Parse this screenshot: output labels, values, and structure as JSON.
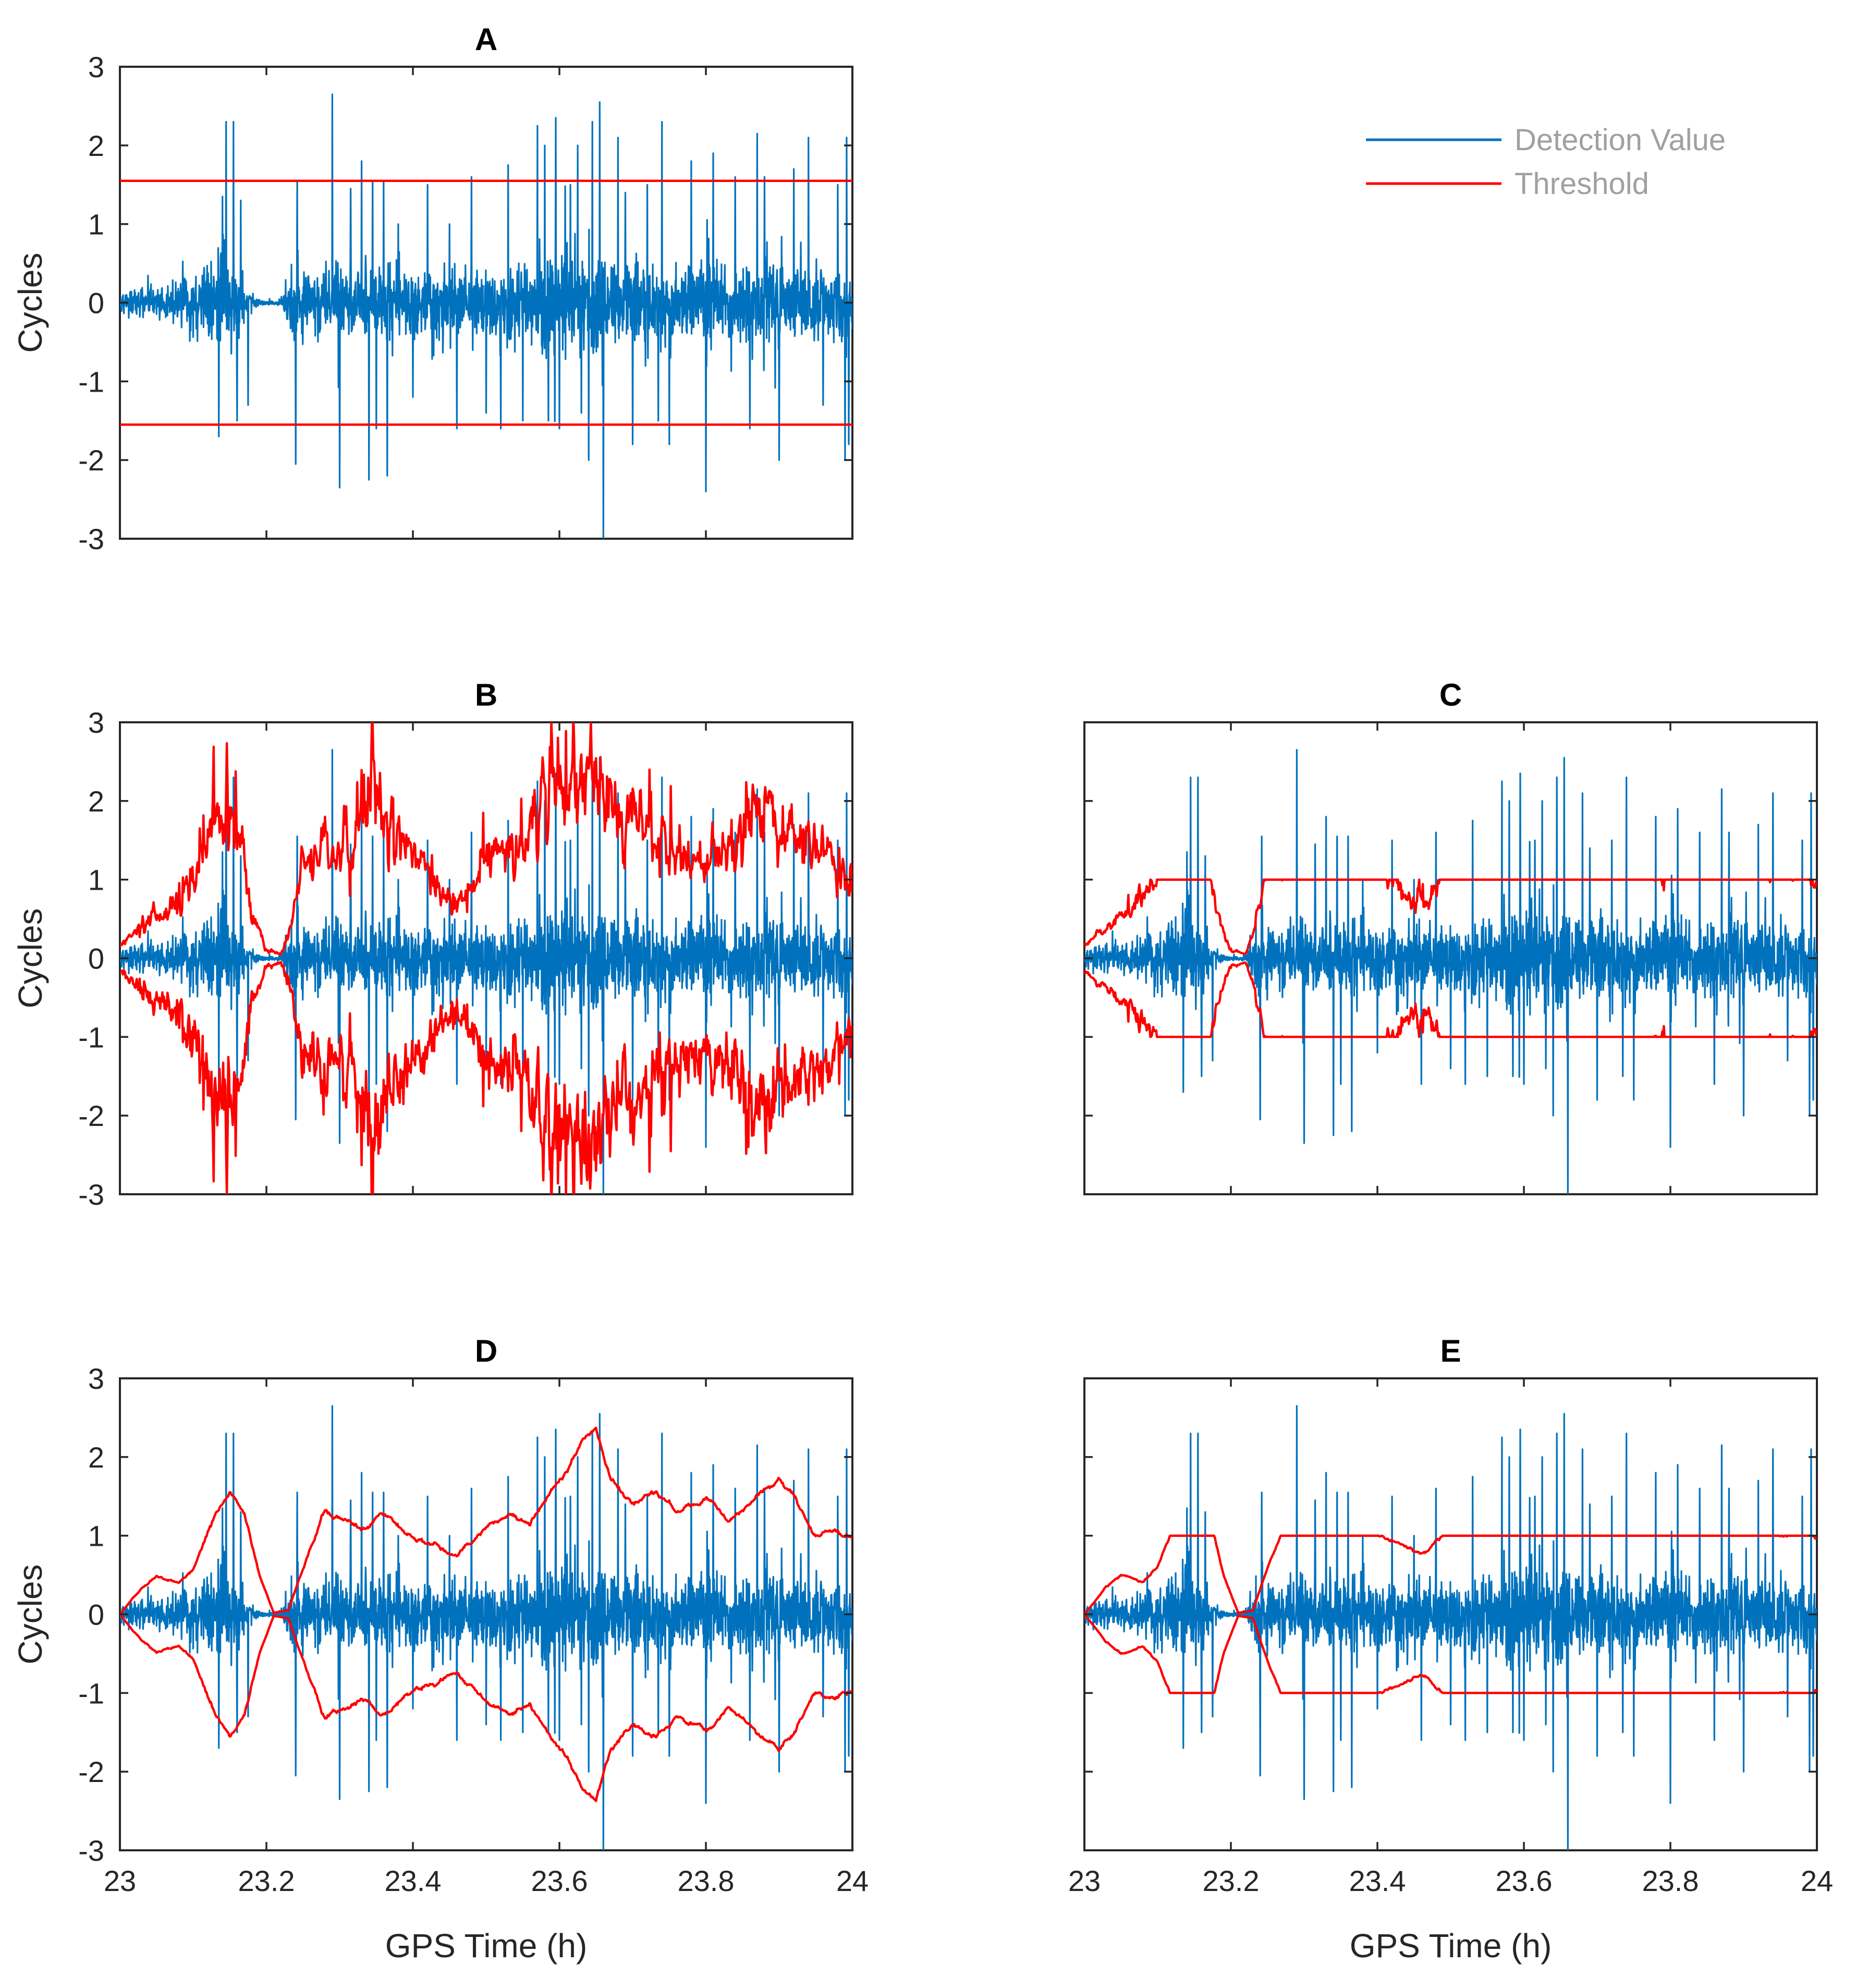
{
  "chart_data": [
    {
      "id": "A",
      "type": "line",
      "title": "A",
      "xlabel": "",
      "ylabel": "Cycles",
      "xlim": [
        23,
        24
      ],
      "ylim": [
        -3,
        3
      ],
      "xticks": [
        23,
        23.2,
        23.4,
        23.6,
        23.8,
        24
      ],
      "yticks": [
        -3,
        -2,
        -1,
        0,
        1,
        2,
        3
      ],
      "show_xtick_labels": false,
      "show_ytick_labels": true,
      "threshold_mode": "constant",
      "threshold_points": [
        [
          23.0,
          1.55
        ],
        [
          24.0,
          1.55
        ]
      ],
      "series": [
        {
          "name": "Detection Value"
        },
        {
          "name": "Threshold"
        }
      ]
    },
    {
      "id": "B",
      "type": "line",
      "title": "B",
      "xlabel": "",
      "ylabel": "Cycles",
      "xlim": [
        23,
        24
      ],
      "ylim": [
        -3,
        3
      ],
      "xticks": [
        23,
        23.2,
        23.4,
        23.6,
        23.8,
        24
      ],
      "yticks": [
        -3,
        -2,
        -1,
        0,
        1,
        2,
        3
      ],
      "show_xtick_labels": false,
      "show_ytick_labels": true,
      "threshold_mode": "noisy",
      "noise_amp": 0.22,
      "threshold_points": [
        [
          23.0,
          0.15
        ],
        [
          23.03,
          0.4
        ],
        [
          23.06,
          0.55
        ],
        [
          23.09,
          0.9
        ],
        [
          23.12,
          1.4
        ],
        [
          23.14,
          2.1
        ],
        [
          23.15,
          2.5
        ],
        [
          23.16,
          1.8
        ],
        [
          23.18,
          0.6
        ],
        [
          23.2,
          0.1
        ],
        [
          23.22,
          0.05
        ],
        [
          23.23,
          0.3
        ],
        [
          23.25,
          1.1
        ],
        [
          23.28,
          1.4
        ],
        [
          23.32,
          1.5
        ],
        [
          23.35,
          2.4
        ],
        [
          23.36,
          1.7
        ],
        [
          23.4,
          1.3
        ],
        [
          23.44,
          0.8
        ],
        [
          23.47,
          0.75
        ],
        [
          23.5,
          1.3
        ],
        [
          23.54,
          1.4
        ],
        [
          23.57,
          1.9
        ],
        [
          23.6,
          2.6
        ],
        [
          23.64,
          2.4
        ],
        [
          23.67,
          1.7
        ],
        [
          23.7,
          1.8
        ],
        [
          23.75,
          1.4
        ],
        [
          23.8,
          1.2
        ],
        [
          23.84,
          1.5
        ],
        [
          23.87,
          2.0
        ],
        [
          23.9,
          1.6
        ],
        [
          23.94,
          1.5
        ],
        [
          23.98,
          1.1
        ],
        [
          24.0,
          1.0
        ]
      ]
    },
    {
      "id": "C",
      "type": "line",
      "title": "C",
      "xlabel": "",
      "ylabel": "",
      "xlim": [
        23,
        24
      ],
      "ylim": [
        -3,
        3
      ],
      "xticks": [
        23,
        23.2,
        23.4,
        23.6,
        23.8,
        24
      ],
      "yticks": [
        -3,
        -2,
        -1,
        0,
        1,
        2,
        3
      ],
      "show_xtick_labels": false,
      "show_ytick_labels": false,
      "threshold_mode": "clipped",
      "clip": 1.0,
      "noise_amp": 0.15,
      "threshold_points": [
        [
          23.0,
          0.15
        ],
        [
          23.03,
          0.4
        ],
        [
          23.06,
          0.55
        ],
        [
          23.09,
          0.9
        ],
        [
          23.12,
          1.4
        ],
        [
          23.14,
          2.1
        ],
        [
          23.15,
          2.5
        ],
        [
          23.16,
          1.8
        ],
        [
          23.18,
          0.6
        ],
        [
          23.2,
          0.1
        ],
        [
          23.22,
          0.05
        ],
        [
          23.23,
          0.3
        ],
        [
          23.25,
          1.1
        ],
        [
          23.28,
          1.4
        ],
        [
          23.32,
          1.5
        ],
        [
          23.35,
          2.4
        ],
        [
          23.36,
          1.7
        ],
        [
          23.4,
          1.3
        ],
        [
          23.44,
          0.8
        ],
        [
          23.47,
          0.75
        ],
        [
          23.5,
          1.3
        ],
        [
          23.54,
          1.4
        ],
        [
          23.57,
          1.9
        ],
        [
          23.6,
          2.6
        ],
        [
          23.64,
          2.4
        ],
        [
          23.67,
          1.7
        ],
        [
          23.7,
          1.8
        ],
        [
          23.75,
          1.4
        ],
        [
          23.8,
          1.2
        ],
        [
          23.84,
          1.5
        ],
        [
          23.87,
          2.0
        ],
        [
          23.9,
          1.6
        ],
        [
          23.94,
          1.5
        ],
        [
          23.98,
          1.1
        ],
        [
          24.0,
          1.0
        ]
      ]
    },
    {
      "id": "D",
      "type": "line",
      "title": "D",
      "xlabel": "GPS Time (h)",
      "ylabel": "Cycles",
      "xlim": [
        23,
        24
      ],
      "ylim": [
        -3,
        3
      ],
      "xticks": [
        23,
        23.2,
        23.4,
        23.6,
        23.8,
        24
      ],
      "yticks": [
        -3,
        -2,
        -1,
        0,
        1,
        2,
        3
      ],
      "show_xtick_labels": true,
      "show_ytick_labels": true,
      "threshold_mode": "smooth",
      "noise_amp": 0.035,
      "threshold_points": [
        [
          23.0,
          0.0
        ],
        [
          23.03,
          0.35
        ],
        [
          23.05,
          0.5
        ],
        [
          23.08,
          0.4
        ],
        [
          23.1,
          0.6
        ],
        [
          23.13,
          1.3
        ],
        [
          23.15,
          1.6
        ],
        [
          23.17,
          1.3
        ],
        [
          23.19,
          0.5
        ],
        [
          23.21,
          0.02
        ],
        [
          23.23,
          0.05
        ],
        [
          23.25,
          0.6
        ],
        [
          23.28,
          1.3
        ],
        [
          23.31,
          1.2
        ],
        [
          23.33,
          1.1
        ],
        [
          23.36,
          1.3
        ],
        [
          23.4,
          1.0
        ],
        [
          23.43,
          0.9
        ],
        [
          23.46,
          0.75
        ],
        [
          23.5,
          1.1
        ],
        [
          23.53,
          1.3
        ],
        [
          23.56,
          1.2
        ],
        [
          23.59,
          1.6
        ],
        [
          23.61,
          1.8
        ],
        [
          23.63,
          2.2
        ],
        [
          23.65,
          2.35
        ],
        [
          23.67,
          1.7
        ],
        [
          23.7,
          1.4
        ],
        [
          23.73,
          1.6
        ],
        [
          23.76,
          1.3
        ],
        [
          23.8,
          1.5
        ],
        [
          23.83,
          1.2
        ],
        [
          23.87,
          1.5
        ],
        [
          23.9,
          1.7
        ],
        [
          23.92,
          1.55
        ],
        [
          23.95,
          1.0
        ],
        [
          23.98,
          1.05
        ],
        [
          24.0,
          0.95
        ]
      ]
    },
    {
      "id": "E",
      "type": "line",
      "title": "E",
      "xlabel": "GPS Time (h)",
      "ylabel": "",
      "xlim": [
        23,
        24
      ],
      "ylim": [
        -3,
        3
      ],
      "xticks": [
        23,
        23.2,
        23.4,
        23.6,
        23.8,
        24
      ],
      "yticks": [
        -3,
        -2,
        -1,
        0,
        1,
        2,
        3
      ],
      "show_xtick_labels": true,
      "show_ytick_labels": false,
      "threshold_mode": "clipped-smooth",
      "clip": 1.0,
      "noise_amp": 0.03,
      "threshold_points": [
        [
          23.0,
          0.0
        ],
        [
          23.03,
          0.35
        ],
        [
          23.05,
          0.5
        ],
        [
          23.08,
          0.4
        ],
        [
          23.1,
          0.6
        ],
        [
          23.13,
          1.3
        ],
        [
          23.15,
          1.6
        ],
        [
          23.17,
          1.3
        ],
        [
          23.19,
          0.5
        ],
        [
          23.21,
          0.02
        ],
        [
          23.23,
          0.05
        ],
        [
          23.25,
          0.6
        ],
        [
          23.28,
          1.3
        ],
        [
          23.31,
          1.2
        ],
        [
          23.33,
          1.1
        ],
        [
          23.36,
          1.3
        ],
        [
          23.4,
          1.0
        ],
        [
          23.43,
          0.9
        ],
        [
          23.46,
          0.75
        ],
        [
          23.5,
          1.1
        ],
        [
          23.53,
          1.3
        ],
        [
          23.56,
          1.2
        ],
        [
          23.59,
          1.6
        ],
        [
          23.61,
          1.8
        ],
        [
          23.63,
          2.2
        ],
        [
          23.65,
          2.35
        ],
        [
          23.67,
          1.7
        ],
        [
          23.7,
          1.4
        ],
        [
          23.73,
          1.6
        ],
        [
          23.76,
          1.3
        ],
        [
          23.8,
          1.5
        ],
        [
          23.83,
          1.2
        ],
        [
          23.87,
          1.5
        ],
        [
          23.9,
          1.7
        ],
        [
          23.92,
          1.55
        ],
        [
          23.95,
          1.0
        ],
        [
          23.98,
          1.05
        ],
        [
          24.0,
          0.95
        ]
      ]
    }
  ],
  "detection_signal": {
    "envelope": [
      [
        23.0,
        0.15
      ],
      [
        23.05,
        0.25
      ],
      [
        23.1,
        0.4
      ],
      [
        23.13,
        0.7
      ],
      [
        23.15,
        0.8
      ],
      [
        23.17,
        0.25
      ],
      [
        23.19,
        0.04
      ],
      [
        23.22,
        0.04
      ],
      [
        23.23,
        0.45
      ],
      [
        23.3,
        0.5
      ],
      [
        23.4,
        0.5
      ],
      [
        23.5,
        0.5
      ],
      [
        23.58,
        0.75
      ],
      [
        23.65,
        0.7
      ],
      [
        23.7,
        0.6
      ],
      [
        23.8,
        0.55
      ],
      [
        23.9,
        0.6
      ],
      [
        24.0,
        0.5
      ]
    ],
    "spikes": [
      [
        23.135,
        -1.7
      ],
      [
        23.14,
        1.35
      ],
      [
        23.145,
        2.3
      ],
      [
        23.155,
        2.3
      ],
      [
        23.16,
        -1.5
      ],
      [
        23.165,
        1.3
      ],
      [
        23.175,
        -1.3
      ],
      [
        23.24,
        -2.05
      ],
      [
        23.242,
        1.55
      ],
      [
        23.29,
        2.65
      ],
      [
        23.3,
        -2.35
      ],
      [
        23.315,
        1.45
      ],
      [
        23.33,
        1.8
      ],
      [
        23.34,
        -2.25
      ],
      [
        23.345,
        1.55
      ],
      [
        23.35,
        -1.6
      ],
      [
        23.36,
        1.55
      ],
      [
        23.365,
        -2.2
      ],
      [
        23.38,
        1.0
      ],
      [
        23.4,
        -1.2
      ],
      [
        23.42,
        1.5
      ],
      [
        23.45,
        1.0
      ],
      [
        23.46,
        -1.6
      ],
      [
        23.48,
        1.6
      ],
      [
        23.5,
        -1.4
      ],
      [
        23.52,
        -1.6
      ],
      [
        23.53,
        1.75
      ],
      [
        23.55,
        -1.5
      ],
      [
        23.57,
        2.25
      ],
      [
        23.58,
        2.0
      ],
      [
        23.585,
        -1.5
      ],
      [
        23.595,
        2.35
      ],
      [
        23.6,
        -1.6
      ],
      [
        23.615,
        1.5
      ],
      [
        23.625,
        2.0
      ],
      [
        23.63,
        -1.4
      ],
      [
        23.64,
        -2.0
      ],
      [
        23.645,
        2.3
      ],
      [
        23.655,
        2.55
      ],
      [
        23.66,
        -3.0
      ],
      [
        23.68,
        2.1
      ],
      [
        23.69,
        1.4
      ],
      [
        23.7,
        -1.8
      ],
      [
        23.72,
        1.5
      ],
      [
        23.735,
        -1.5
      ],
      [
        23.74,
        2.3
      ],
      [
        23.75,
        -1.8
      ],
      [
        23.78,
        1.8
      ],
      [
        23.8,
        -2.4
      ],
      [
        23.81,
        1.9
      ],
      [
        23.84,
        1.6
      ],
      [
        23.86,
        -1.6
      ],
      [
        23.87,
        2.15
      ],
      [
        23.88,
        1.6
      ],
      [
        23.9,
        -2.0
      ],
      [
        23.92,
        1.7
      ],
      [
        23.94,
        2.1
      ],
      [
        23.96,
        -1.3
      ],
      [
        23.98,
        1.5
      ],
      [
        23.99,
        -2.0
      ],
      [
        23.992,
        2.1
      ],
      [
        23.995,
        -1.8
      ]
    ]
  },
  "legend": {
    "items": [
      {
        "label": "Detection Value",
        "color": "#0072BD"
      },
      {
        "label": "Threshold",
        "color": "#FF0000"
      }
    ]
  },
  "colors": {
    "detection": "#0072BD",
    "threshold": "#FF0000",
    "axis": "#262626",
    "legend_text": "#A0A0A0"
  }
}
